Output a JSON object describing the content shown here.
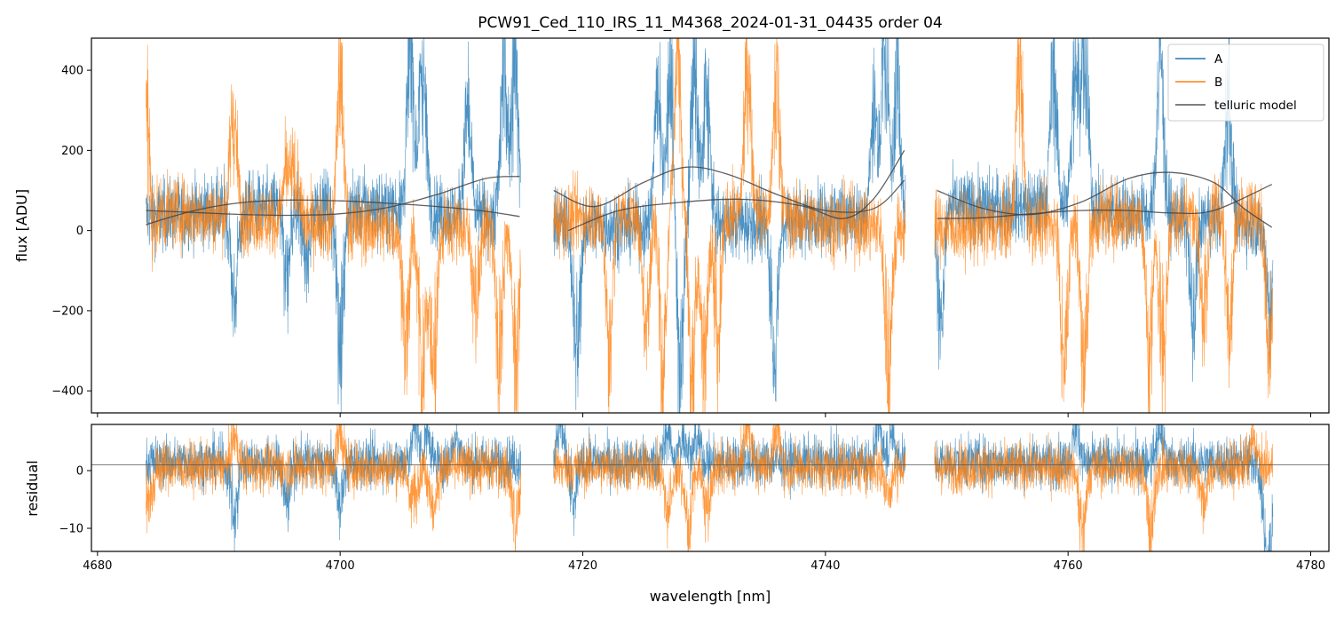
{
  "chart_data": [
    {
      "type": "line",
      "panel": "main",
      "title": "PCW91_Ced_110_IRS_11_M4368_2024-01-31_04435  order 04",
      "xlabel": "",
      "ylabel": "flux [ADU]",
      "xlim": [
        4679.5,
        4781.5
      ],
      "ylim": [
        -455,
        480
      ],
      "yticks": [
        -400,
        -200,
        0,
        200,
        400
      ],
      "ytick_labels": [
        "−400",
        "−200",
        "0",
        "200",
        "400"
      ],
      "xticks": [
        4680,
        4700,
        4720,
        4740,
        4760,
        4780
      ],
      "legend_position": "upper right",
      "segments": [
        [
          4684.0,
          4714.9
        ],
        [
          4717.6,
          4746.6
        ],
        [
          4749.0,
          4776.9
        ]
      ],
      "series": [
        {
          "name": "A",
          "color": "#1f77b4",
          "alpha": 0.8,
          "kind": "noisy-spectrum",
          "noise": 45,
          "features": [
            {
              "x": 4691.3,
              "amp": -300
            },
            {
              "x": 4695.6,
              "amp": -220
            },
            {
              "x": 4697.2,
              "amp": -190
            },
            {
              "x": 4700.0,
              "amp": -430
            },
            {
              "x": 4705.8,
              "amp": 520
            },
            {
              "x": 4706.8,
              "amp": 480
            },
            {
              "x": 4710.5,
              "amp": 330
            },
            {
              "x": 4713.5,
              "amp": 450
            },
            {
              "x": 4714.4,
              "amp": 520
            },
            {
              "x": 4719.5,
              "amp": -420
            },
            {
              "x": 4726.2,
              "amp": 460
            },
            {
              "x": 4727.2,
              "amp": 500
            },
            {
              "x": 4728.0,
              "amp": -450
            },
            {
              "x": 4729.2,
              "amp": 490
            },
            {
              "x": 4730.2,
              "amp": 440
            },
            {
              "x": 4735.8,
              "amp": -420
            },
            {
              "x": 4744.0,
              "amp": 330
            },
            {
              "x": 4744.9,
              "amp": 520
            },
            {
              "x": 4745.9,
              "amp": 420
            },
            {
              "x": 4749.5,
              "amp": -370
            },
            {
              "x": 4758.8,
              "amp": 440
            },
            {
              "x": 4760.6,
              "amp": 510
            },
            {
              "x": 4761.4,
              "amp": 480
            },
            {
              "x": 4767.6,
              "amp": 500
            },
            {
              "x": 4770.3,
              "amp": -330
            },
            {
              "x": 4773.2,
              "amp": 420
            },
            {
              "x": 4776.6,
              "amp": -260
            }
          ]
        },
        {
          "name": "B",
          "color": "#ff7f0e",
          "alpha": 0.8,
          "kind": "noisy-spectrum",
          "noise": 45,
          "features": [
            {
              "x": 4684.1,
              "amp": 520
            },
            {
              "x": 4684.3,
              "amp": -260
            },
            {
              "x": 4691.2,
              "amp": 330
            },
            {
              "x": 4695.6,
              "amp": 160
            },
            {
              "x": 4696.3,
              "amp": 150
            },
            {
              "x": 4700.0,
              "amp": 450
            },
            {
              "x": 4705.4,
              "amp": -360
            },
            {
              "x": 4706.8,
              "amp": -500
            },
            {
              "x": 4707.7,
              "amp": -450
            },
            {
              "x": 4711.2,
              "amp": -280
            },
            {
              "x": 4713.1,
              "amp": -430
            },
            {
              "x": 4714.5,
              "amp": -480
            },
            {
              "x": 4722.2,
              "amp": -420
            },
            {
              "x": 4725.2,
              "amp": -370
            },
            {
              "x": 4726.6,
              "amp": -470
            },
            {
              "x": 4727.8,
              "amp": 500
            },
            {
              "x": 4729.0,
              "amp": -480
            },
            {
              "x": 4730.0,
              "amp": -470
            },
            {
              "x": 4731.1,
              "amp": -420
            },
            {
              "x": 4733.6,
              "amp": 500
            },
            {
              "x": 4736.0,
              "amp": 420
            },
            {
              "x": 4745.2,
              "amp": -480
            },
            {
              "x": 4756.0,
              "amp": 500
            },
            {
              "x": 4759.7,
              "amp": -480
            },
            {
              "x": 4761.3,
              "amp": -500
            },
            {
              "x": 4766.7,
              "amp": -460
            },
            {
              "x": 4767.8,
              "amp": -470
            },
            {
              "x": 4771.2,
              "amp": -350
            },
            {
              "x": 4773.3,
              "amp": -400
            },
            {
              "x": 4776.6,
              "amp": -480
            }
          ]
        },
        {
          "name": "telluric model",
          "color": "#444444",
          "alpha": 0.85,
          "kind": "smooth",
          "curves": [
            {
              "x": [
                4684.0,
                4688.0,
                4692.0,
                4696.0,
                4700.0,
                4704.0,
                4708.0,
                4712.0,
                4714.8
              ],
              "y": [
                50,
                45,
                40,
                38,
                42,
                58,
                90,
                130,
                135
              ]
            },
            {
              "x": [
                4684.0,
                4688.0,
                4692.0,
                4696.0,
                4700.0,
                4704.0,
                4708.0,
                4712.0,
                4714.8
              ],
              "y": [
                15,
                50,
                70,
                76,
                74,
                68,
                60,
                48,
                35
              ]
            },
            {
              "x": [
                4717.6,
                4721.0,
                4725.0,
                4728.5,
                4732.0,
                4736.0,
                4740.0,
                4744.0,
                4746.5
              ],
              "y": [
                100,
                60,
                120,
                158,
                140,
                90,
                50,
                55,
                125
              ]
            },
            {
              "x": [
                4718.8,
                4723.0,
                4728.0,
                4733.0,
                4738.0,
                4741.5,
                4744.0,
                4746.5
              ],
              "y": [
                0,
                50,
                70,
                78,
                62,
                30,
                80,
                200
              ]
            },
            {
              "x": [
                4749.2,
                4753.0,
                4757.0,
                4761.0,
                4765.0,
                4768.5,
                4772.0,
                4774.5,
                4776.8
              ],
              "y": [
                100,
                55,
                40,
                70,
                130,
                145,
                120,
                55,
                8
              ]
            },
            {
              "x": [
                4749.2,
                4753.0,
                4757.0,
                4761.0,
                4765.0,
                4768.5,
                4772.0,
                4776.8
              ],
              "y": [
                30,
                32,
                42,
                50,
                50,
                44,
                50,
                115
              ]
            }
          ]
        }
      ],
      "legend": [
        "A",
        "B",
        "telluric model"
      ]
    },
    {
      "type": "line",
      "panel": "residual",
      "title": "",
      "xlabel": "wavelength [nm]",
      "ylabel": "residual",
      "xlim": [
        4679.5,
        4781.5
      ],
      "ylim": [
        -14,
        8
      ],
      "yticks": [
        -10,
        0
      ],
      "ytick_labels": [
        "−10",
        "0"
      ],
      "xticks": [
        4680,
        4700,
        4720,
        4740,
        4760,
        4780
      ],
      "xtick_labels": [
        "4680",
        "4700",
        "4720",
        "4740",
        "4760",
        "4780"
      ],
      "hline": 1,
      "segments": [
        [
          4684.0,
          4714.9
        ],
        [
          4717.6,
          4746.6
        ],
        [
          4749.0,
          4776.9
        ]
      ],
      "series": [
        {
          "name": "A",
          "color": "#1f77b4",
          "alpha": 0.8,
          "noise": 2.2,
          "features": [
            {
              "x": 4691.3,
              "amp": -13
            },
            {
              "x": 4695.6,
              "amp": -8
            },
            {
              "x": 4700.0,
              "amp": -9
            },
            {
              "x": 4706.2,
              "amp": 8
            },
            {
              "x": 4707.2,
              "amp": 6
            },
            {
              "x": 4709.6,
              "amp": 6
            },
            {
              "x": 4718.2,
              "amp": 9
            },
            {
              "x": 4719.2,
              "amp": -9
            },
            {
              "x": 4727.0,
              "amp": 7
            },
            {
              "x": 4728.3,
              "amp": 6
            },
            {
              "x": 4729.4,
              "amp": 5
            },
            {
              "x": 4744.4,
              "amp": 8
            },
            {
              "x": 4745.5,
              "amp": 6
            },
            {
              "x": 4760.7,
              "amp": 8
            },
            {
              "x": 4767.6,
              "amp": 7
            },
            {
              "x": 4776.3,
              "amp": -14
            },
            {
              "x": 4776.7,
              "amp": -14
            }
          ]
        },
        {
          "name": "B",
          "color": "#ff7f0e",
          "alpha": 0.8,
          "noise": 2.2,
          "features": [
            {
              "x": 4684.3,
              "amp": -8
            },
            {
              "x": 4691.3,
              "amp": 7
            },
            {
              "x": 4700.0,
              "amp": 8
            },
            {
              "x": 4706.0,
              "amp": -8
            },
            {
              "x": 4707.7,
              "amp": -9
            },
            {
              "x": 4714.5,
              "amp": -13
            },
            {
              "x": 4727.0,
              "amp": -9
            },
            {
              "x": 4728.7,
              "amp": -13
            },
            {
              "x": 4730.3,
              "amp": -10
            },
            {
              "x": 4733.6,
              "amp": 9
            },
            {
              "x": 4736.0,
              "amp": 8
            },
            {
              "x": 4745.2,
              "amp": -6
            },
            {
              "x": 4761.2,
              "amp": -14
            },
            {
              "x": 4766.8,
              "amp": -14
            },
            {
              "x": 4771.2,
              "amp": -8
            },
            {
              "x": 4775.3,
              "amp": 6
            }
          ]
        }
      ]
    }
  ]
}
